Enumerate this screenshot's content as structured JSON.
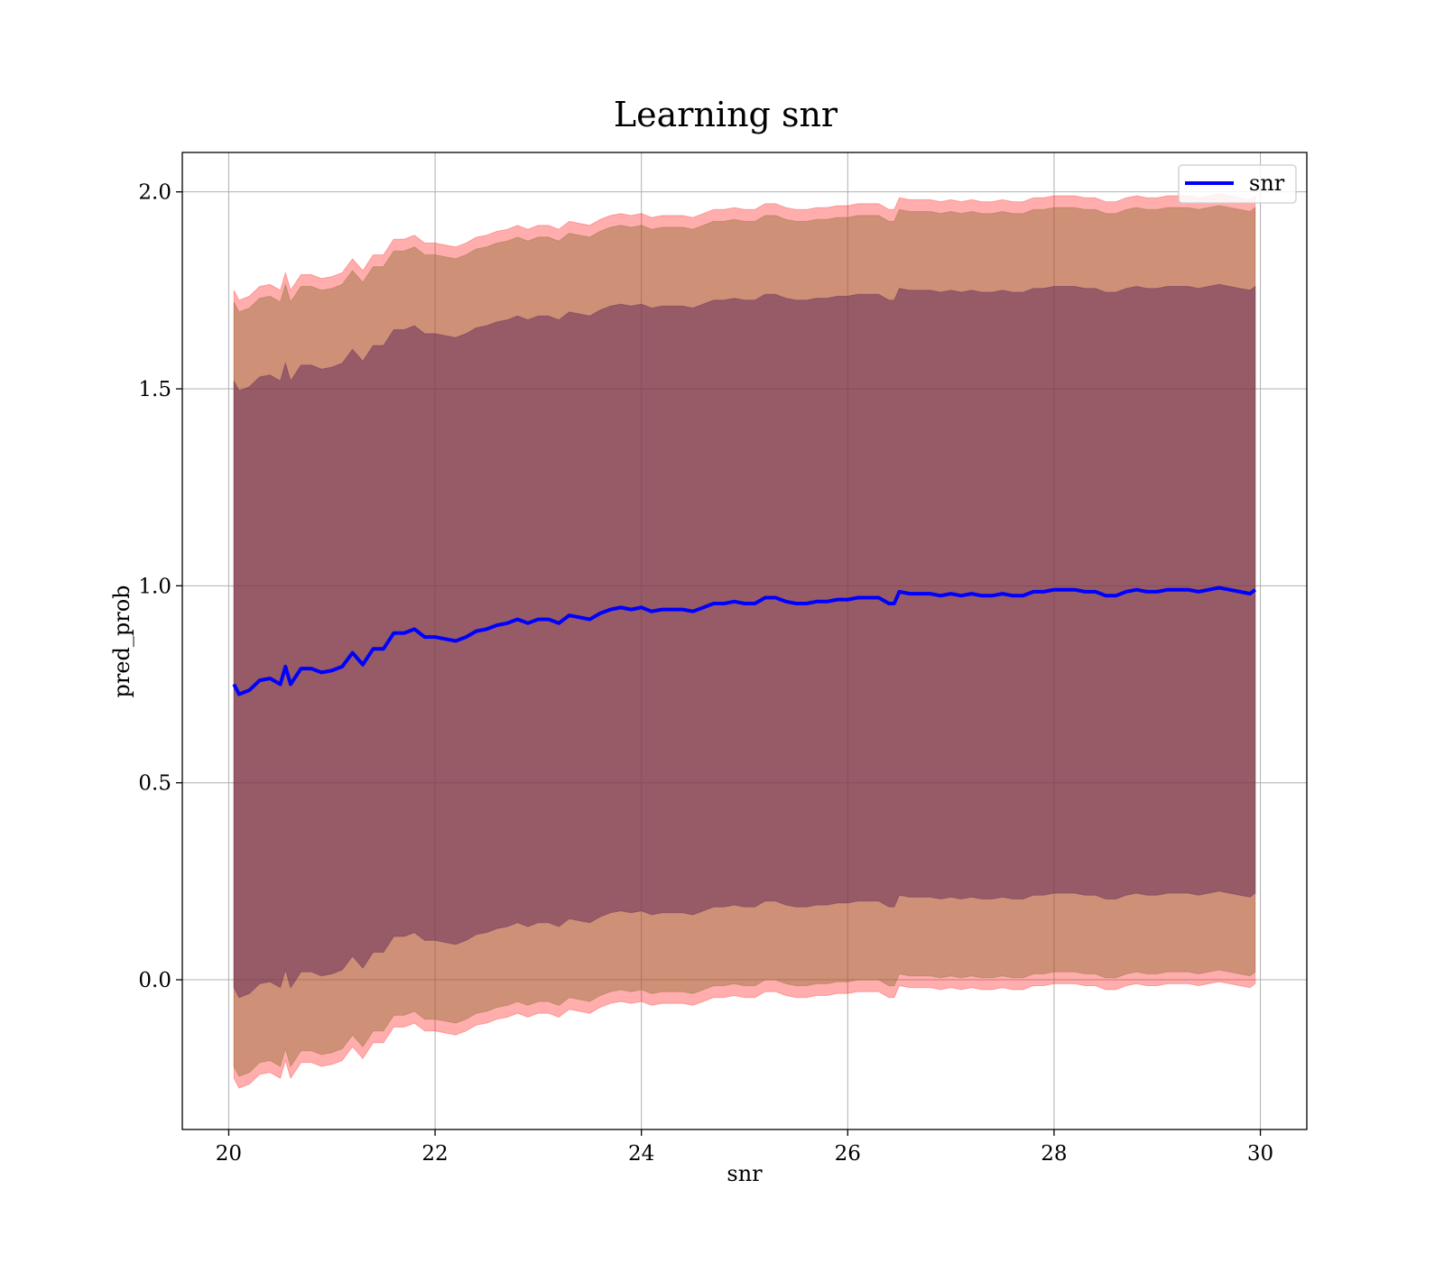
{
  "chart_data": {
    "type": "line",
    "title": "Learning snr",
    "xlabel": "snr",
    "ylabel": "pred_prob",
    "xlim": [
      19.55,
      30.45
    ],
    "ylim": [
      -0.38,
      2.1
    ],
    "xticks": [
      20,
      22,
      24,
      26,
      28,
      30
    ],
    "xtick_labels": [
      "20",
      "22",
      "24",
      "26",
      "28",
      "30"
    ],
    "yticks": [
      0.0,
      0.5,
      1.0,
      1.5,
      2.0
    ],
    "ytick_labels": [
      "0.0",
      "0.5",
      "1.0",
      "1.5",
      "2.0"
    ],
    "grid": true,
    "legend": {
      "position": "top-right",
      "entries": [
        {
          "label": "snr",
          "color": "#0000ff"
        }
      ]
    },
    "series": [
      {
        "name": "snr",
        "color": "#0000ff",
        "x": [
          20.05,
          20.1,
          20.2,
          20.3,
          20.4,
          20.5,
          20.55,
          20.6,
          20.7,
          20.8,
          20.9,
          21.0,
          21.1,
          21.2,
          21.3,
          21.4,
          21.5,
          21.6,
          21.7,
          21.8,
          21.9,
          22.0,
          22.1,
          22.2,
          22.3,
          22.4,
          22.5,
          22.6,
          22.7,
          22.8,
          22.9,
          23.0,
          23.1,
          23.2,
          23.3,
          23.4,
          23.5,
          23.6,
          23.7,
          23.8,
          23.9,
          24.0,
          24.1,
          24.2,
          24.3,
          24.4,
          24.5,
          24.6,
          24.7,
          24.8,
          24.9,
          25.0,
          25.1,
          25.2,
          25.3,
          25.4,
          25.5,
          25.6,
          25.7,
          25.8,
          25.9,
          26.0,
          26.1,
          26.2,
          26.3,
          26.4,
          26.45,
          26.5,
          26.6,
          26.7,
          26.8,
          26.9,
          27.0,
          27.1,
          27.2,
          27.3,
          27.4,
          27.5,
          27.6,
          27.7,
          27.8,
          27.9,
          28.0,
          28.1,
          28.2,
          28.3,
          28.4,
          28.5,
          28.6,
          28.7,
          28.8,
          28.9,
          29.0,
          29.1,
          29.2,
          29.3,
          29.4,
          29.5,
          29.6,
          29.7,
          29.8,
          29.9,
          29.95
        ],
        "values": [
          0.75,
          0.725,
          0.735,
          0.76,
          0.765,
          0.75,
          0.795,
          0.75,
          0.79,
          0.79,
          0.78,
          0.785,
          0.795,
          0.83,
          0.8,
          0.84,
          0.84,
          0.88,
          0.88,
          0.89,
          0.87,
          0.87,
          0.865,
          0.86,
          0.87,
          0.885,
          0.89,
          0.9,
          0.905,
          0.915,
          0.905,
          0.915,
          0.915,
          0.905,
          0.925,
          0.92,
          0.915,
          0.93,
          0.94,
          0.945,
          0.94,
          0.945,
          0.935,
          0.94,
          0.94,
          0.94,
          0.935,
          0.945,
          0.955,
          0.955,
          0.96,
          0.955,
          0.955,
          0.97,
          0.97,
          0.96,
          0.955,
          0.955,
          0.96,
          0.96,
          0.965,
          0.965,
          0.97,
          0.97,
          0.97,
          0.955,
          0.955,
          0.985,
          0.98,
          0.98,
          0.98,
          0.975,
          0.98,
          0.975,
          0.98,
          0.975,
          0.975,
          0.98,
          0.975,
          0.975,
          0.985,
          0.985,
          0.99,
          0.99,
          0.99,
          0.985,
          0.985,
          0.975,
          0.975,
          0.985,
          0.99,
          0.985,
          0.985,
          0.99,
          0.99,
          0.99,
          0.985,
          0.99,
          0.995,
          0.99,
          0.985,
          0.98,
          0.99
        ]
      }
    ],
    "bands": [
      {
        "name": "outer band",
        "color": "#ff0000",
        "opacity": 0.32,
        "half_width": 1.0
      },
      {
        "name": "middle band",
        "color": "#8b6b2e",
        "opacity": 0.42,
        "half_width": 0.97
      },
      {
        "name": "inner band",
        "color": "#6a2f5c",
        "opacity": 0.55,
        "half_width": 0.77
      }
    ]
  }
}
